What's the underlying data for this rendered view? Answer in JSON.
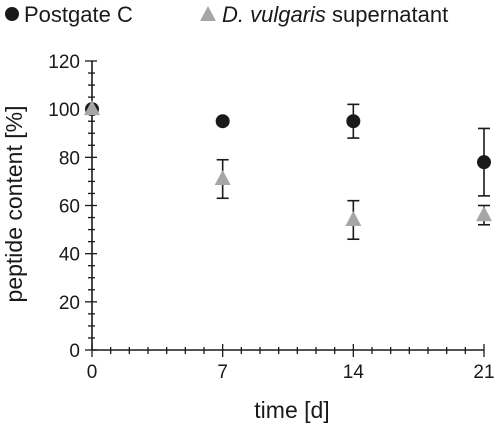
{
  "chart_data": {
    "type": "scatter",
    "title": "",
    "xlabel": "time [d]",
    "ylabel": "peptide content [%]",
    "x": [
      0,
      7,
      14,
      21
    ],
    "x_tick_labels": [
      "0",
      "7",
      "14",
      "21"
    ],
    "xlim": [
      0,
      21
    ],
    "ylim": [
      0,
      120
    ],
    "y_ticks": [
      0,
      20,
      40,
      60,
      80,
      100,
      120
    ],
    "y_minor_step": 5,
    "grid": false,
    "legend_position": "top",
    "series": [
      {
        "name": "Postgate C",
        "name_parts": [
          {
            "text": "Postgate C",
            "italic": false
          }
        ],
        "marker": "circle",
        "color": "#1a1a1a",
        "values": [
          100,
          95,
          95,
          78
        ],
        "errors": [
          0,
          0,
          7,
          14
        ]
      },
      {
        "name": "D. vulgaris supernatant",
        "name_parts": [
          {
            "text": "D. vulgaris",
            "italic": true
          },
          {
            "text": " supernatant",
            "italic": false
          }
        ],
        "marker": "triangle",
        "color": "#a6a6a6",
        "values": [
          100,
          71,
          54,
          56
        ],
        "errors": [
          0,
          8,
          8,
          4
        ]
      }
    ]
  }
}
